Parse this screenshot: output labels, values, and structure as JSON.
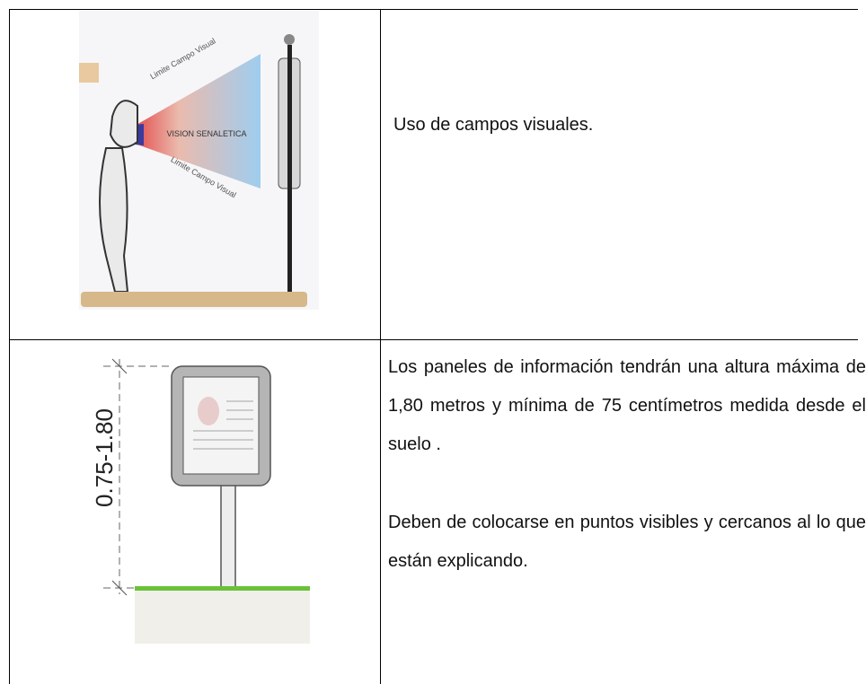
{
  "rows": [
    {
      "image": {
        "labels": [
          "Limite Campo Visual",
          "VISION SENALETICA",
          "Limite Campo Visual"
        ]
      },
      "text": [
        "Uso de campos visuales."
      ]
    },
    {
      "image": {
        "labels": [
          "0.75-1.80"
        ]
      },
      "text": [
        "Los paneles de información tendrán una altura máxima de 1,80 metros y mínima de 75 centímetros medida desde el suelo .",
        "Deben de colocarse en puntos visibles y cercanos al lo que están explicando."
      ]
    }
  ]
}
